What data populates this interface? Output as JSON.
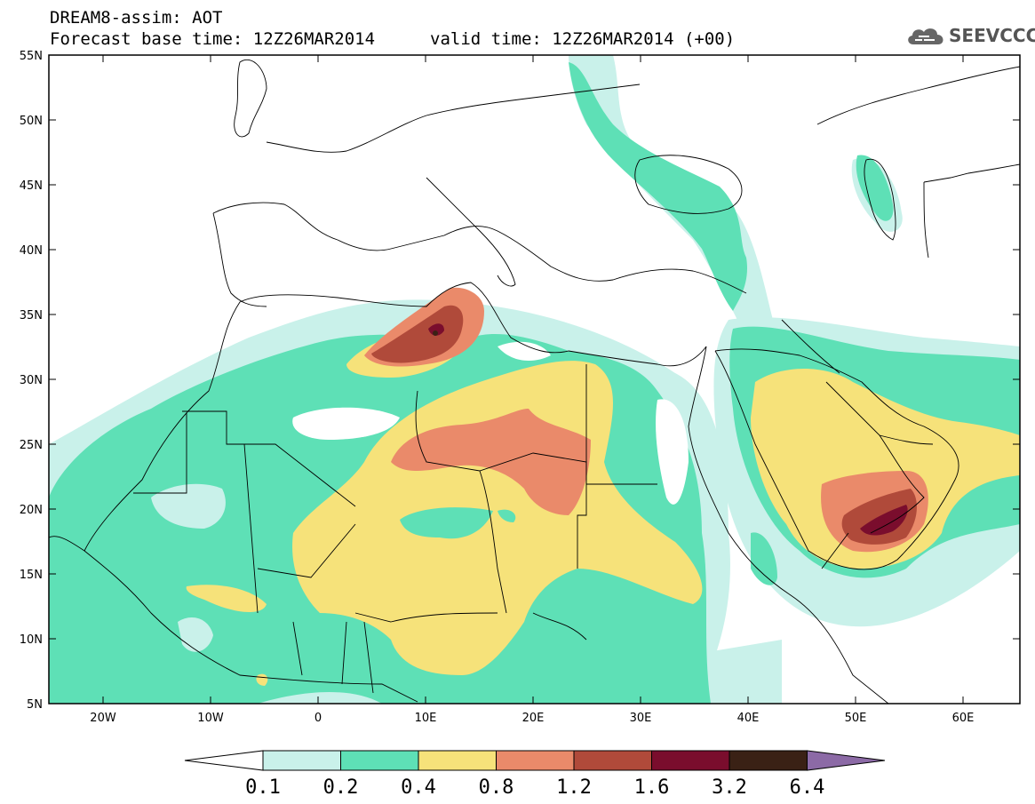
{
  "header": {
    "title": "DREAM8-assim: AOT",
    "base_time": "Forecast base time: 12Z26MAR2014",
    "valid_time": "valid time: 12Z26MAR2014 (+00)",
    "logo_text": "SEEVCCC"
  },
  "axes": {
    "lat_labels": [
      "55N",
      "50N",
      "45N",
      "40N",
      "35N",
      "30N",
      "25N",
      "20N",
      "15N",
      "10N",
      "5N"
    ],
    "lon_labels": [
      "20W",
      "10W",
      "0",
      "10E",
      "20E",
      "30E",
      "40E",
      "50E",
      "60E"
    ]
  },
  "legend": {
    "labels": [
      "0.1",
      "0.2",
      "0.4",
      "0.8",
      "1.2",
      "1.6",
      "3.2",
      "6.4"
    ],
    "colors": [
      "#ffffff",
      "#c9f1ea",
      "#5ee0b6",
      "#f6e27a",
      "#ea8a6a",
      "#b04a3a",
      "#7a0d2d",
      "#3a2115",
      "#8c6aa6"
    ]
  },
  "colors": {
    "c01": "#c9f1ea",
    "c02": "#5ee0b6",
    "c04": "#f6e27a",
    "c08": "#ea8a6a",
    "c12": "#b04a3a",
    "c16": "#7a0d2d",
    "c32": "#3a2115"
  }
}
